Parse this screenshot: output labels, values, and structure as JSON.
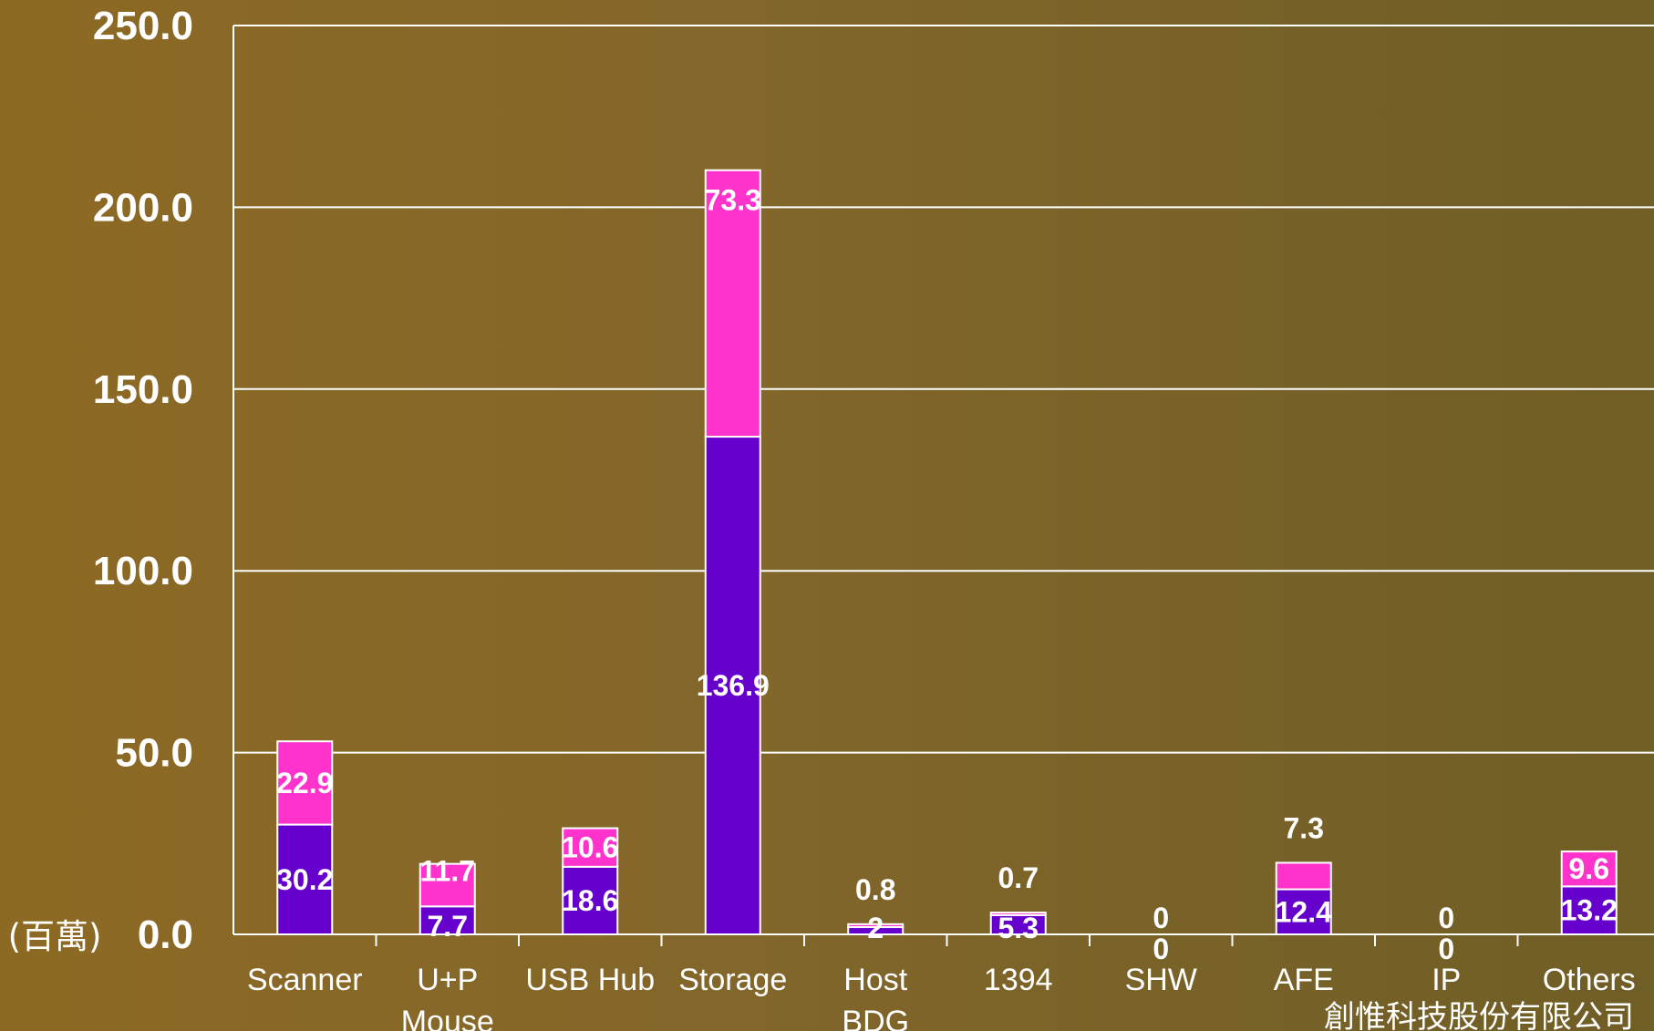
{
  "chart_data": {
    "type": "bar",
    "stacked": true,
    "categories": [
      "Scanner",
      "U+P Mouse",
      "USB Hub",
      "Storage",
      "Host BDG",
      "1394",
      "SHW",
      "AFE",
      "IP",
      "Others"
    ],
    "category_lines": [
      [
        "Scanner"
      ],
      [
        "U+P",
        "Mouse"
      ],
      [
        "USB Hub"
      ],
      [
        "Storage"
      ],
      [
        "Host",
        "BDG"
      ],
      [
        "1394"
      ],
      [
        "SHW"
      ],
      [
        "AFE"
      ],
      [
        "IP"
      ],
      [
        "Others"
      ]
    ],
    "series": [
      {
        "color": "#6600cc",
        "values": [
          30.2,
          7.7,
          18.6,
          136.9,
          2,
          5.3,
          0,
          12.4,
          0,
          13.2
        ],
        "labels": [
          "30.2",
          "7.7",
          "18.6",
          "136.9",
          "2",
          "5.3",
          "0",
          "12.4",
          "0",
          "13.2"
        ]
      },
      {
        "color": "#ff33cc",
        "values": [
          22.9,
          11.7,
          10.6,
          73.3,
          0.8,
          0.7,
          0,
          7.3,
          0,
          9.6
        ],
        "labels": [
          "22.9",
          "11.7",
          "10.6",
          "73.3",
          "0.8",
          "0.7",
          "0",
          "7.3",
          "0",
          "9.6"
        ]
      }
    ],
    "ylim": [
      0,
      250
    ],
    "yticks": [
      "0.0",
      "50.0",
      "100.0",
      "150.0",
      "200.0",
      "250.0"
    ],
    "ylabel": "(百萬)",
    "grid": true
  },
  "footer": {
    "company": "創惟科技股份有限公司"
  },
  "colors": {
    "text": "#ffffff",
    "grid": "#ffffff"
  }
}
